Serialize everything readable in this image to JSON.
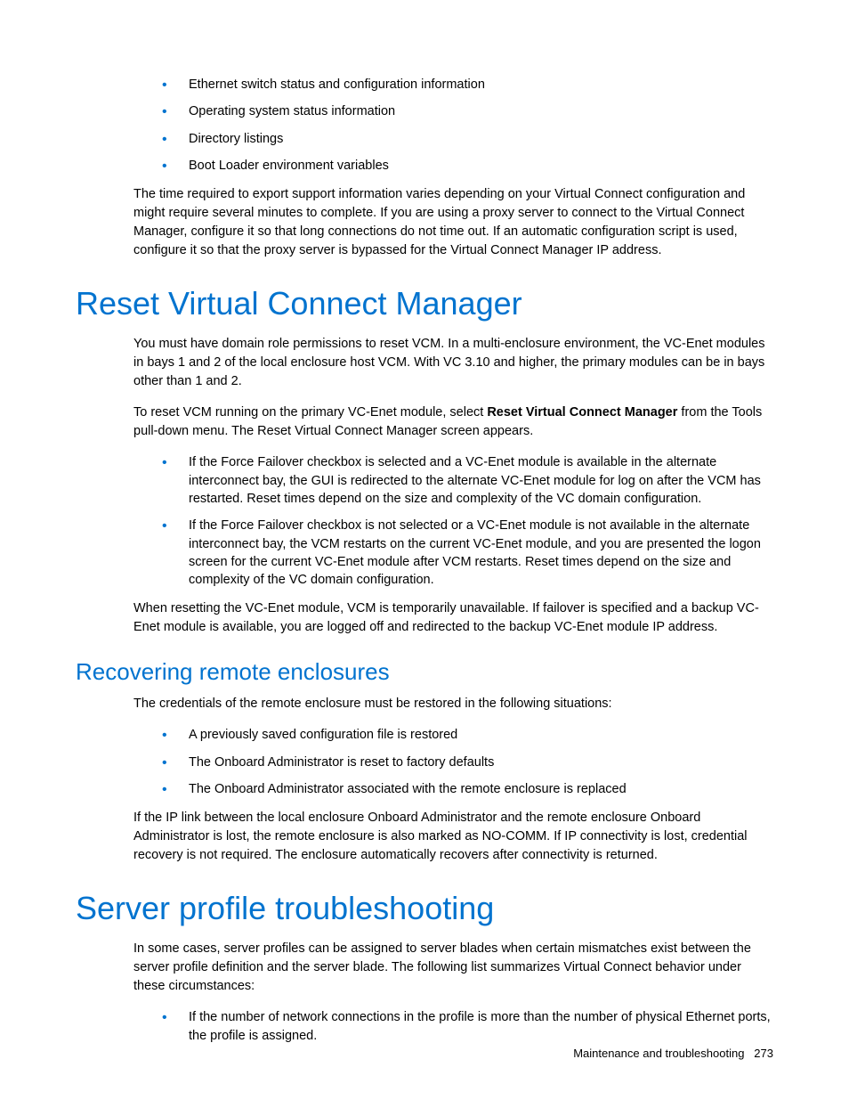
{
  "colors": {
    "accent": "#0073cf",
    "text": "#000000",
    "background": "#ffffff"
  },
  "typography": {
    "body_size_pt": 11,
    "h1_size_pt": 27,
    "h2_size_pt": 19,
    "body_family": "Arial",
    "h_weight": 300
  },
  "top_bullets": [
    "Ethernet switch status and configuration information",
    "Operating system status information",
    "Directory listings",
    "Boot Loader environment variables"
  ],
  "top_para": "The time required to export support information varies depending on your Virtual Connect configuration and might require several minutes to complete. If you are using a proxy server to connect to the Virtual Connect Manager, configure it so that long connections do not time out. If an automatic configuration script is used, configure it so that the proxy server is bypassed for the Virtual Connect Manager IP address.",
  "section_reset": {
    "title": "Reset Virtual Connect Manager",
    "p1": "You must have domain role permissions to reset VCM. In a multi-enclosure environment, the VC-Enet modules in bays 1 and 2 of the local enclosure host VCM. With VC 3.10 and higher, the primary modules can be in bays other than 1 and 2.",
    "p2_pre": "To reset VCM running on the primary VC-Enet module, select ",
    "p2_bold": "Reset Virtual Connect Manager",
    "p2_post": " from the Tools pull-down menu. The Reset Virtual Connect Manager screen appears.",
    "bullets": [
      "If the Force Failover checkbox is selected and a VC-Enet module is available in the alternate interconnect bay, the GUI is redirected to the alternate VC-Enet module for log on after the VCM has restarted. Reset times depend on the size and complexity of the VC domain configuration.",
      "If the Force Failover checkbox is not selected or a VC-Enet module is not available in the alternate interconnect bay, the VCM restarts on the current VC-Enet module, and you are presented the logon screen for the current VC-Enet module after VCM restarts. Reset times depend on the size and complexity of the VC domain configuration."
    ],
    "p3": "When resetting the VC-Enet module, VCM is temporarily unavailable. If failover is specified and a backup VC-Enet module is available, you are logged off and redirected to the backup VC-Enet module IP address."
  },
  "section_recover": {
    "title": "Recovering remote enclosures",
    "p1": "The credentials of the remote enclosure must be restored in the following situations:",
    "bullets": [
      "A previously saved configuration file is restored",
      "The Onboard Administrator is reset to factory defaults",
      "The Onboard Administrator associated with the remote enclosure is replaced"
    ],
    "p2": "If the IP link between the local enclosure Onboard Administrator and the remote enclosure Onboard Administrator is lost, the remote enclosure is also marked as NO-COMM. If IP connectivity is lost, credential recovery is not required. The enclosure automatically recovers after connectivity is returned."
  },
  "section_server": {
    "title": "Server profile troubleshooting",
    "p1": "In some cases, server profiles can be assigned to server blades when certain mismatches exist between the server profile definition and the server blade. The following list summarizes Virtual Connect behavior under these circumstances:",
    "bullets": [
      "If the number of network connections in the profile is more than the number of physical Ethernet ports, the profile is assigned."
    ]
  },
  "footer": {
    "label": "Maintenance and troubleshooting",
    "page": "273"
  }
}
